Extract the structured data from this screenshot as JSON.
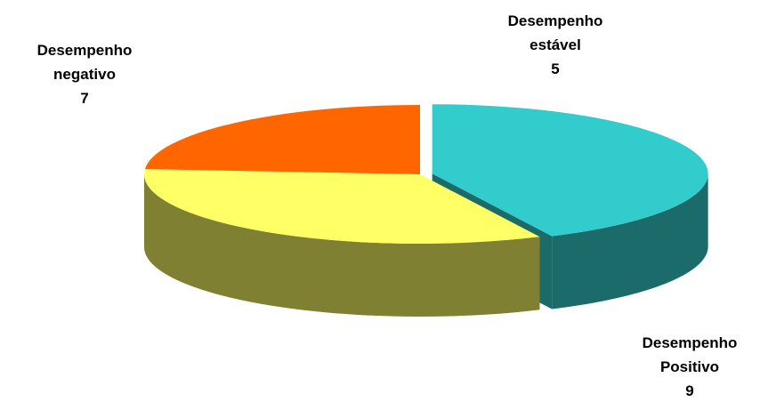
{
  "chart_data": {
    "type": "pie3d",
    "categories": [
      "Desempenho Positivo",
      "Desempenho negativo",
      "Desempenho estável"
    ],
    "values": [
      9,
      7,
      5
    ],
    "colors": [
      "#33CCCC",
      "#FFFF66",
      "#FF6600"
    ],
    "side_colors": [
      "#1B6B6B",
      "#808033",
      "#993300"
    ]
  }
}
